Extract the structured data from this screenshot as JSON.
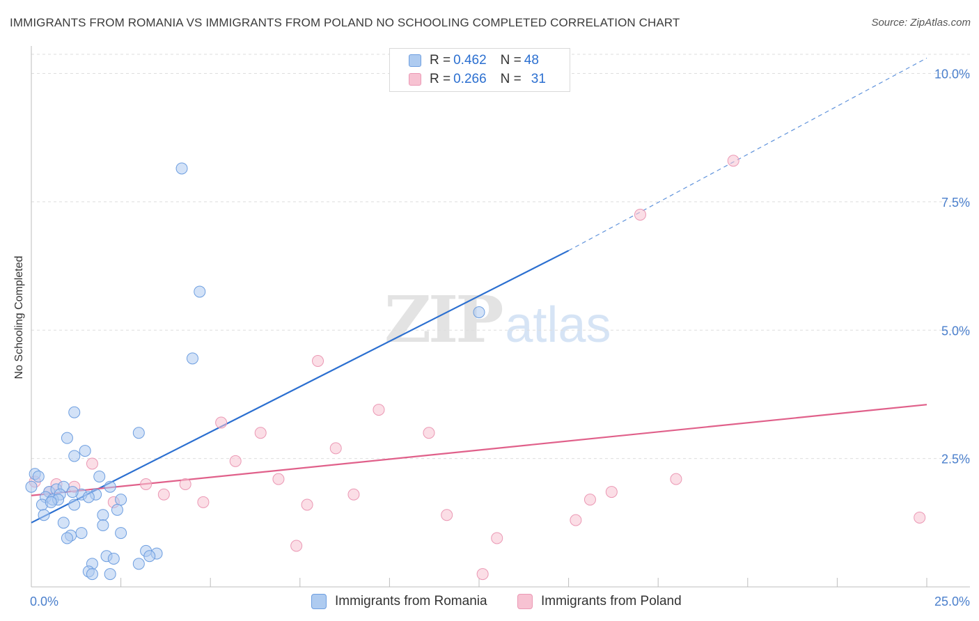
{
  "title": "IMMIGRANTS FROM ROMANIA VS IMMIGRANTS FROM POLAND NO SCHOOLING COMPLETED CORRELATION CHART",
  "source": "Source: ZipAtlas.com",
  "watermark": {
    "zip": "ZIP",
    "atlas": "atlas"
  },
  "legend": {
    "romania": {
      "r_label": "R = ",
      "r_value": "0.462",
      "n_label": "N = ",
      "n_value": "48"
    },
    "poland": {
      "r_label": "R = ",
      "r_value": "0.266",
      "n_label": "N = ",
      "n_value": "31"
    }
  },
  "bottom_legend": {
    "romania": "Immigrants from Romania",
    "poland": "Immigrants from Poland"
  },
  "colors": {
    "romania_fill": "#aecbf0",
    "romania_stroke": "#6d9ee0",
    "romania_line": "#2b6fd0",
    "poland_fill": "#f7c2d2",
    "poland_stroke": "#eb98b4",
    "poland_line": "#e0608a",
    "axis_label": "#4a7fcc",
    "grid": "#dedede"
  },
  "chart_data": {
    "type": "scatter",
    "title": "IMMIGRANTS FROM ROMANIA VS IMMIGRANTS FROM POLAND NO SCHOOLING COMPLETED CORRELATION CHART",
    "xlabel": "",
    "ylabel": "No Schooling Completed",
    "xlim": [
      0,
      25
    ],
    "ylim": [
      0,
      10.4
    ],
    "x_tick_labels": [
      {
        "value": 0,
        "label": "0.0%"
      },
      {
        "value": 25,
        "label": "25.0%"
      }
    ],
    "y_tick_labels": [
      {
        "value": 2.5,
        "label": "2.5%"
      },
      {
        "value": 5.0,
        "label": "5.0%"
      },
      {
        "value": 7.5,
        "label": "7.5%"
      },
      {
        "value": 10.0,
        "label": "10.0%"
      }
    ],
    "series": [
      {
        "name": "Immigrants from Romania",
        "R": 0.462,
        "N": 48,
        "trend": {
          "x0": 0.0,
          "y0": 1.25,
          "x1": 15.0,
          "y1": 6.55,
          "x_end": 25.0,
          "y_end": 10.3
        },
        "points": [
          [
            4.2,
            8.15
          ],
          [
            4.7,
            5.75
          ],
          [
            4.5,
            4.45
          ],
          [
            12.5,
            5.35
          ],
          [
            1.2,
            3.4
          ],
          [
            3.0,
            3.0
          ],
          [
            1.0,
            2.9
          ],
          [
            1.5,
            2.65
          ],
          [
            1.2,
            2.55
          ],
          [
            0.1,
            2.2
          ],
          [
            0.2,
            2.15
          ],
          [
            0.0,
            1.95
          ],
          [
            1.9,
            2.15
          ],
          [
            2.2,
            1.95
          ],
          [
            0.5,
            1.85
          ],
          [
            0.7,
            1.9
          ],
          [
            0.9,
            1.95
          ],
          [
            1.4,
            1.8
          ],
          [
            1.8,
            1.8
          ],
          [
            0.8,
            1.8
          ],
          [
            0.4,
            1.75
          ],
          [
            0.6,
            1.7
          ],
          [
            0.3,
            1.6
          ],
          [
            1.2,
            1.6
          ],
          [
            2.5,
            1.7
          ],
          [
            1.6,
            1.75
          ],
          [
            0.35,
            1.4
          ],
          [
            2.0,
            1.4
          ],
          [
            2.4,
            1.5
          ],
          [
            0.9,
            1.25
          ],
          [
            2.0,
            1.2
          ],
          [
            1.4,
            1.05
          ],
          [
            2.5,
            1.05
          ],
          [
            1.1,
            1.0
          ],
          [
            1.0,
            0.95
          ],
          [
            3.2,
            0.7
          ],
          [
            3.5,
            0.65
          ],
          [
            3.3,
            0.6
          ],
          [
            2.1,
            0.6
          ],
          [
            2.3,
            0.55
          ],
          [
            1.7,
            0.45
          ],
          [
            3.0,
            0.45
          ],
          [
            1.6,
            0.3
          ],
          [
            2.2,
            0.25
          ],
          [
            1.7,
            0.25
          ],
          [
            0.75,
            1.7
          ],
          [
            0.55,
            1.65
          ],
          [
            1.15,
            1.85
          ]
        ]
      },
      {
        "name": "Immigrants from Poland",
        "R": 0.266,
        "N": 31,
        "trend": {
          "x0": 0.0,
          "y0": 1.78,
          "x1": 25.0,
          "y1": 3.55
        },
        "points": [
          [
            19.6,
            8.3
          ],
          [
            17.0,
            7.25
          ],
          [
            8.0,
            4.4
          ],
          [
            9.7,
            3.45
          ],
          [
            5.3,
            3.2
          ],
          [
            6.4,
            3.0
          ],
          [
            11.1,
            3.0
          ],
          [
            8.5,
            2.7
          ],
          [
            5.7,
            2.45
          ],
          [
            1.7,
            2.4
          ],
          [
            6.9,
            2.1
          ],
          [
            18.0,
            2.1
          ],
          [
            4.3,
            2.0
          ],
          [
            3.2,
            2.0
          ],
          [
            1.2,
            1.95
          ],
          [
            0.7,
            2.0
          ],
          [
            9.0,
            1.8
          ],
          [
            3.7,
            1.8
          ],
          [
            16.2,
            1.85
          ],
          [
            15.6,
            1.7
          ],
          [
            2.3,
            1.65
          ],
          [
            4.8,
            1.65
          ],
          [
            7.7,
            1.6
          ],
          [
            11.6,
            1.4
          ],
          [
            15.2,
            1.3
          ],
          [
            24.8,
            1.35
          ],
          [
            13.0,
            0.95
          ],
          [
            7.4,
            0.8
          ],
          [
            12.6,
            0.25
          ],
          [
            0.1,
            2.05
          ],
          [
            0.5,
            1.85
          ]
        ]
      }
    ]
  }
}
